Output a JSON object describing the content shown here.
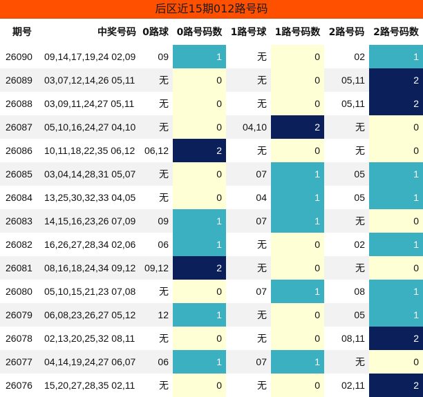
{
  "title": "后区近15期012路号码",
  "headers": [
    "期号",
    "中奖号码",
    "0路球",
    "0路号码数",
    "1路号球",
    "1路号码数",
    "2路号码",
    "2路号码数"
  ],
  "rows": [
    {
      "issue": "26090",
      "numbers": "09,14,17,19,24 02,09",
      "r0": "09",
      "c0": "1",
      "r1": "无",
      "c1": "0",
      "r2": "02",
      "c2": "1"
    },
    {
      "issue": "26089",
      "numbers": "03,07,12,14,26 05,11",
      "r0": "无",
      "c0": "0",
      "r1": "无",
      "c1": "0",
      "r2": "05,11",
      "c2": "2"
    },
    {
      "issue": "26088",
      "numbers": "03,09,11,24,27 05,11",
      "r0": "无",
      "c0": "0",
      "r1": "无",
      "c1": "0",
      "r2": "05,11",
      "c2": "2"
    },
    {
      "issue": "26087",
      "numbers": "05,10,16,24,27 04,10",
      "r0": "无",
      "c0": "0",
      "r1": "04,10",
      "c1": "2",
      "r2": "无",
      "c2": "0"
    },
    {
      "issue": "26086",
      "numbers": "10,11,18,22,35 06,12",
      "r0": "06,12",
      "c0": "2",
      "r1": "无",
      "c1": "0",
      "r2": "无",
      "c2": "0"
    },
    {
      "issue": "26085",
      "numbers": "03,04,14,28,31 05,07",
      "r0": "无",
      "c0": "0",
      "r1": "07",
      "c1": "1",
      "r2": "05",
      "c2": "1"
    },
    {
      "issue": "26084",
      "numbers": "13,25,30,32,33 04,05",
      "r0": "无",
      "c0": "0",
      "r1": "04",
      "c1": "1",
      "r2": "05",
      "c2": "1"
    },
    {
      "issue": "26083",
      "numbers": "14,15,16,23,26 07,09",
      "r0": "09",
      "c0": "1",
      "r1": "07",
      "c1": "1",
      "r2": "无",
      "c2": "0"
    },
    {
      "issue": "26082",
      "numbers": "16,26,27,28,34 02,06",
      "r0": "06",
      "c0": "1",
      "r1": "无",
      "c1": "0",
      "r2": "02",
      "c2": "1"
    },
    {
      "issue": "26081",
      "numbers": "08,16,18,24,34 09,12",
      "r0": "09,12",
      "c0": "2",
      "r1": "无",
      "c1": "0",
      "r2": "无",
      "c2": "0"
    },
    {
      "issue": "26080",
      "numbers": "05,10,15,21,23 07,08",
      "r0": "无",
      "c0": "0",
      "r1": "07",
      "c1": "1",
      "r2": "08",
      "c2": "1"
    },
    {
      "issue": "26079",
      "numbers": "06,08,23,26,27 05,12",
      "r0": "12",
      "c0": "1",
      "r1": "无",
      "c1": "0",
      "r2": "05",
      "c2": "1"
    },
    {
      "issue": "26078",
      "numbers": "02,13,20,25,32 08,11",
      "r0": "无",
      "c0": "0",
      "r1": "无",
      "c1": "0",
      "r2": "08,11",
      "c2": "2"
    },
    {
      "issue": "26077",
      "numbers": "04,14,19,24,27 06,07",
      "r0": "06",
      "c0": "1",
      "r1": "07",
      "c1": "1",
      "r2": "无",
      "c2": "0"
    },
    {
      "issue": "26076",
      "numbers": "15,20,27,28,35 02,11",
      "r0": "无",
      "c0": "0",
      "r1": "无",
      "c1": "0",
      "r2": "02,11",
      "c2": "2"
    }
  ],
  "colors": {
    "title_bg": "#ff5000",
    "count_0": "#ffffd6",
    "count_1": "#3ab0c0",
    "count_2": "#0b1f5a",
    "row_alt": "#f2f2f2"
  }
}
